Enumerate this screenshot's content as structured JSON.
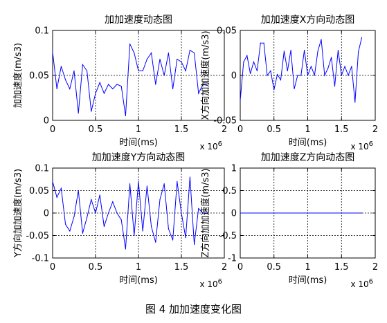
{
  "caption": "图 4  加加速度变化图",
  "chart_data": [
    {
      "type": "line",
      "title": "加加速度动态图",
      "xlabel": "时间(ms)",
      "ylabel": "加加速度(m/s3)",
      "x_multiplier": "x 10",
      "x_multiplier_exp": "6",
      "xlim": [
        0,
        2
      ],
      "ylim": [
        0,
        0.1
      ],
      "xticks": [
        0,
        0.5,
        1,
        1.5,
        2
      ],
      "yticks": [
        0,
        0.05,
        0.1
      ],
      "xticklabels": [
        "0",
        "0.5",
        "1",
        "1.5",
        "2"
      ],
      "yticklabels": [
        "0",
        "0.05",
        "0.1"
      ],
      "grid": true,
      "color": "#0000ff",
      "series": [
        {
          "x": [
            0,
            0.05,
            0.1,
            0.15,
            0.2,
            0.25,
            0.3,
            0.35,
            0.4,
            0.45,
            0.5,
            0.55,
            0.6,
            0.65,
            0.7,
            0.75,
            0.8,
            0.85,
            0.9,
            0.95,
            1.0,
            1.05,
            1.1,
            1.15,
            1.2,
            1.25,
            1.3,
            1.35,
            1.4,
            1.45,
            1.5,
            1.55,
            1.6,
            1.65,
            1.7,
            1.75,
            1.8
          ],
          "y": [
            0.076,
            0.035,
            0.06,
            0.045,
            0.035,
            0.055,
            0.008,
            0.062,
            0.055,
            0.01,
            0.03,
            0.042,
            0.03,
            0.04,
            0.035,
            0.04,
            0.038,
            0.005,
            0.085,
            0.075,
            0.055,
            0.055,
            0.068,
            0.075,
            0.04,
            0.068,
            0.05,
            0.075,
            0.035,
            0.068,
            0.065,
            0.055,
            0.078,
            0.075,
            0.03,
            0.04,
            0.04
          ]
        }
      ]
    },
    {
      "type": "line",
      "title": "加加速度X方向动态图",
      "xlabel": "时间(ms)",
      "ylabel": "X方向加加速度(m/s3)",
      "x_multiplier": "x 10",
      "x_multiplier_exp": "6",
      "xlim": [
        0,
        2
      ],
      "ylim": [
        -0.05,
        0.05
      ],
      "xticks": [
        0,
        0.5,
        1,
        1.5,
        2
      ],
      "yticks": [
        -0.05,
        0,
        0.05
      ],
      "xticklabels": [
        "0",
        "0.5",
        "1",
        "1.5",
        "2"
      ],
      "yticklabels": [
        "-0.05",
        "0",
        "0.05"
      ],
      "grid": true,
      "color": "#0000ff",
      "series": [
        {
          "x": [
            0,
            0.05,
            0.1,
            0.15,
            0.2,
            0.25,
            0.3,
            0.35,
            0.4,
            0.45,
            0.5,
            0.55,
            0.6,
            0.65,
            0.7,
            0.75,
            0.8,
            0.85,
            0.9,
            0.95,
            1.0,
            1.05,
            1.1,
            1.15,
            1.2,
            1.25,
            1.3,
            1.35,
            1.4,
            1.45,
            1.5,
            1.55,
            1.6,
            1.65,
            1.7,
            1.75,
            1.8
          ],
          "y": [
            -0.028,
            0.015,
            0.022,
            0.002,
            0.015,
            0.005,
            0.036,
            0.036,
            0.0,
            0.005,
            -0.016,
            0.001,
            -0.005,
            0.027,
            0.005,
            0.028,
            -0.015,
            0.0,
            0.0,
            0.028,
            0.0,
            0.01,
            0.0,
            0.027,
            0.04,
            0.0,
            0.008,
            0.02,
            -0.012,
            0.028,
            0.0,
            0.01,
            0.0,
            0.01,
            -0.03,
            0.026,
            0.042
          ]
        }
      ]
    },
    {
      "type": "line",
      "title": "加加速度Y方向动态图",
      "xlabel": "时间(ms)",
      "ylabel": "Y方向加加速度(m/s3)",
      "x_multiplier": "x 10",
      "x_multiplier_exp": "6",
      "xlim": [
        0,
        2
      ],
      "ylim": [
        -0.1,
        0.1
      ],
      "xticks": [
        0,
        0.5,
        1,
        1.5,
        2
      ],
      "yticks": [
        -0.1,
        -0.05,
        0,
        0.05,
        0.1
      ],
      "xticklabels": [
        "0",
        "0.5",
        "1",
        "1.5",
        "2"
      ],
      "yticklabels": [
        "-0.1",
        "-0.05",
        "0",
        "0.05",
        "0.1"
      ],
      "grid": true,
      "color": "#0000ff",
      "series": [
        {
          "x": [
            0,
            0.05,
            0.1,
            0.15,
            0.2,
            0.25,
            0.3,
            0.35,
            0.4,
            0.45,
            0.5,
            0.55,
            0.6,
            0.65,
            0.7,
            0.75,
            0.8,
            0.85,
            0.9,
            0.95,
            1.0,
            1.05,
            1.1,
            1.15,
            1.2,
            1.25,
            1.3,
            1.35,
            1.4,
            1.45,
            1.5,
            1.55,
            1.6,
            1.65,
            1.7,
            1.75,
            1.8
          ],
          "y": [
            0.07,
            0.035,
            0.055,
            -0.025,
            -0.04,
            -0.008,
            0.05,
            -0.045,
            -0.01,
            0.03,
            0.0,
            0.04,
            -0.03,
            0.0,
            0.025,
            0.0,
            -0.015,
            -0.08,
            0.065,
            -0.05,
            0.07,
            -0.04,
            0.06,
            -0.03,
            -0.065,
            0.03,
            0.065,
            -0.035,
            -0.06,
            0.07,
            0.0,
            -0.055,
            0.08,
            -0.07,
            0.01,
            0.0,
            0.0
          ]
        }
      ]
    },
    {
      "type": "line",
      "title": "加加速度Z方向动态图",
      "xlabel": "时间(ms)",
      "ylabel": "Z方向加加速度(m/s3)",
      "x_multiplier": "x 10",
      "x_multiplier_exp": "6",
      "xlim": [
        0,
        2
      ],
      "ylim": [
        -1,
        1
      ],
      "xticks": [
        0,
        0.5,
        1,
        1.5,
        2
      ],
      "yticks": [
        -1,
        -0.5,
        0,
        0.5,
        1
      ],
      "xticklabels": [
        "0",
        "0.5",
        "1",
        "1.5",
        "2"
      ],
      "yticklabels": [
        "-1",
        "-0.5",
        "0",
        "0.5",
        "1"
      ],
      "grid": true,
      "color": "#0000ff",
      "series": [
        {
          "x": [
            0,
            0.5,
            1.0,
            1.5,
            1.8
          ],
          "y": [
            0,
            0,
            0,
            0,
            0
          ]
        }
      ]
    }
  ]
}
